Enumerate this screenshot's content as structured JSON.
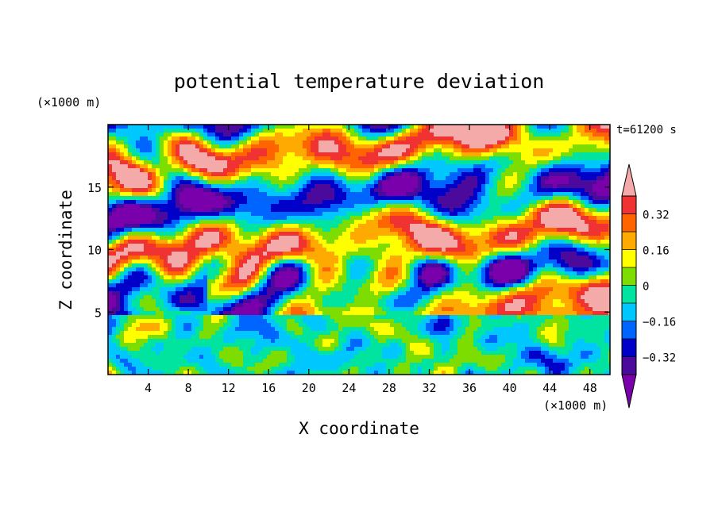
{
  "chart_data": {
    "type": "heatmap",
    "title": "potential temperature deviation",
    "xlabel": "X coordinate",
    "ylabel": "Z coordinate",
    "x_unit": "(×1000 m)",
    "y_unit": "(×1000 m)",
    "time_label": "t=61200 s",
    "xlim": [
      0,
      50
    ],
    "ylim": [
      0,
      20
    ],
    "x_ticks": [
      4,
      8,
      12,
      16,
      20,
      24,
      28,
      32,
      36,
      40,
      44,
      48
    ],
    "x_tick_labels": [
      "4",
      "8",
      "12",
      "16",
      "20",
      "24",
      "28",
      "32",
      "36",
      "40",
      "44",
      "48"
    ],
    "y_ticks": [
      5,
      10,
      15
    ],
    "y_tick_labels": [
      "5",
      "10",
      "15"
    ],
    "colorbar": {
      "levels": [
        -0.4,
        -0.32,
        -0.24,
        -0.16,
        -0.08,
        0,
        0.08,
        0.16,
        0.24,
        0.32,
        0.4
      ],
      "colors": [
        "#7a00ab",
        "#4b0a9c",
        "#0000c8",
        "#0064ff",
        "#00c8ff",
        "#00e4a0",
        "#7ddc00",
        "#ffff00",
        "#ffaa00",
        "#ff6400",
        "#f03232",
        "#f5aaaa"
      ],
      "tick_values": [
        0.32,
        0.16,
        0,
        -0.16,
        -0.32
      ],
      "tick_labels": [
        "0.32",
        "0.16",
        "0",
        "−0.16",
        "−0.32"
      ],
      "extend": "both"
    },
    "colors": {
      "dry_negative": "#7a00ab",
      "positive_max": "#f5aaaa",
      "frame": "#000000"
    }
  }
}
